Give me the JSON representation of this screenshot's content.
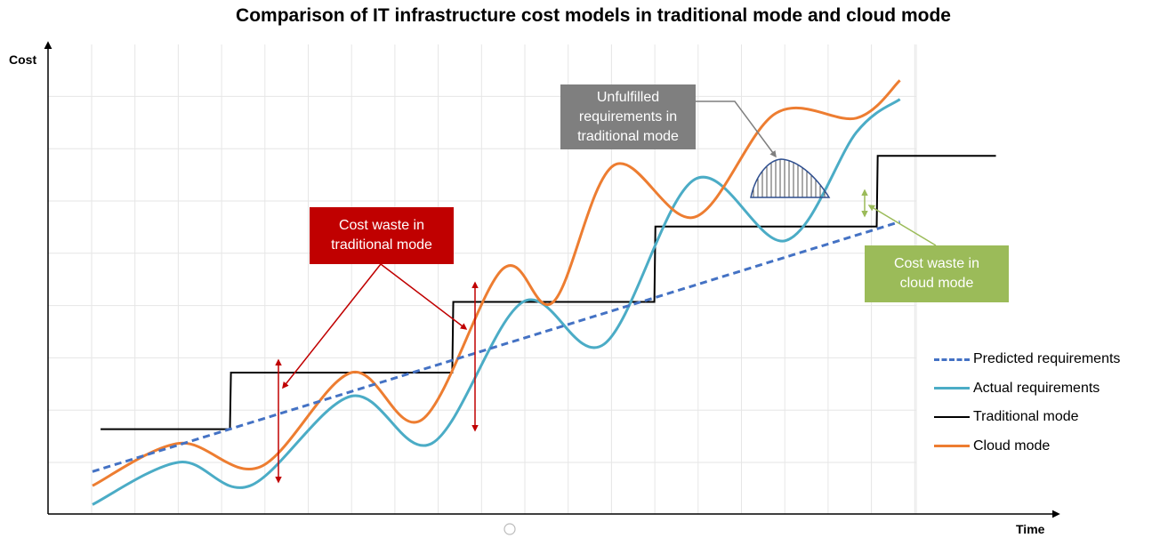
{
  "chart_data": {
    "type": "line",
    "title": "Comparison of IT infrastructure cost models in traditional mode and cloud mode",
    "xlabel": "Time",
    "ylabel": "Cost",
    "x_range": [
      0,
      1
    ],
    "y_range": [
      0,
      1
    ],
    "grid": true,
    "legend_position": "right",
    "series": [
      {
        "name": "Predicted requirements",
        "style": "dashed",
        "color": "#4472C4",
        "x": [
          0.044,
          0.843
        ],
        "y": [
          0.09,
          0.62
        ]
      },
      {
        "name": "Actual requirements",
        "color": "#4BACC6",
        "x": [
          0.044,
          0.13,
          0.2,
          0.3,
          0.38,
          0.47,
          0.55,
          0.64,
          0.73,
          0.8,
          0.843
        ],
        "y": [
          0.02,
          0.11,
          0.06,
          0.25,
          0.15,
          0.45,
          0.36,
          0.71,
          0.58,
          0.81,
          0.88
        ]
      },
      {
        "name": "Traditional mode",
        "color": "#000000",
        "x": [
          0.052,
          0.18,
          0.181,
          0.4,
          0.401,
          0.6,
          0.601,
          0.82,
          0.821,
          0.938
        ],
        "y": [
          0.18,
          0.18,
          0.3,
          0.3,
          0.45,
          0.45,
          0.61,
          0.61,
          0.76,
          0.76
        ]
      },
      {
        "name": "Cloud mode",
        "color": "#ED7D31",
        "x": [
          0.044,
          0.13,
          0.21,
          0.3,
          0.37,
          0.45,
          0.5,
          0.56,
          0.64,
          0.72,
          0.8,
          0.843
        ],
        "y": [
          0.06,
          0.15,
          0.1,
          0.3,
          0.2,
          0.52,
          0.45,
          0.74,
          0.63,
          0.85,
          0.84,
          0.92
        ]
      }
    ]
  },
  "annotations": {
    "traditional_waste": "Cost waste in\ntraditional mode",
    "unfulfilled": "Unfulfilled\nrequirements in\ntraditional mode",
    "cloud_waste": "Cost waste in\ncloud mode"
  },
  "colors": {
    "red_box": "#C00000",
    "gray_box": "#7F7F7F",
    "green_box": "#9BBB59",
    "grid": "#E6E6E6"
  }
}
